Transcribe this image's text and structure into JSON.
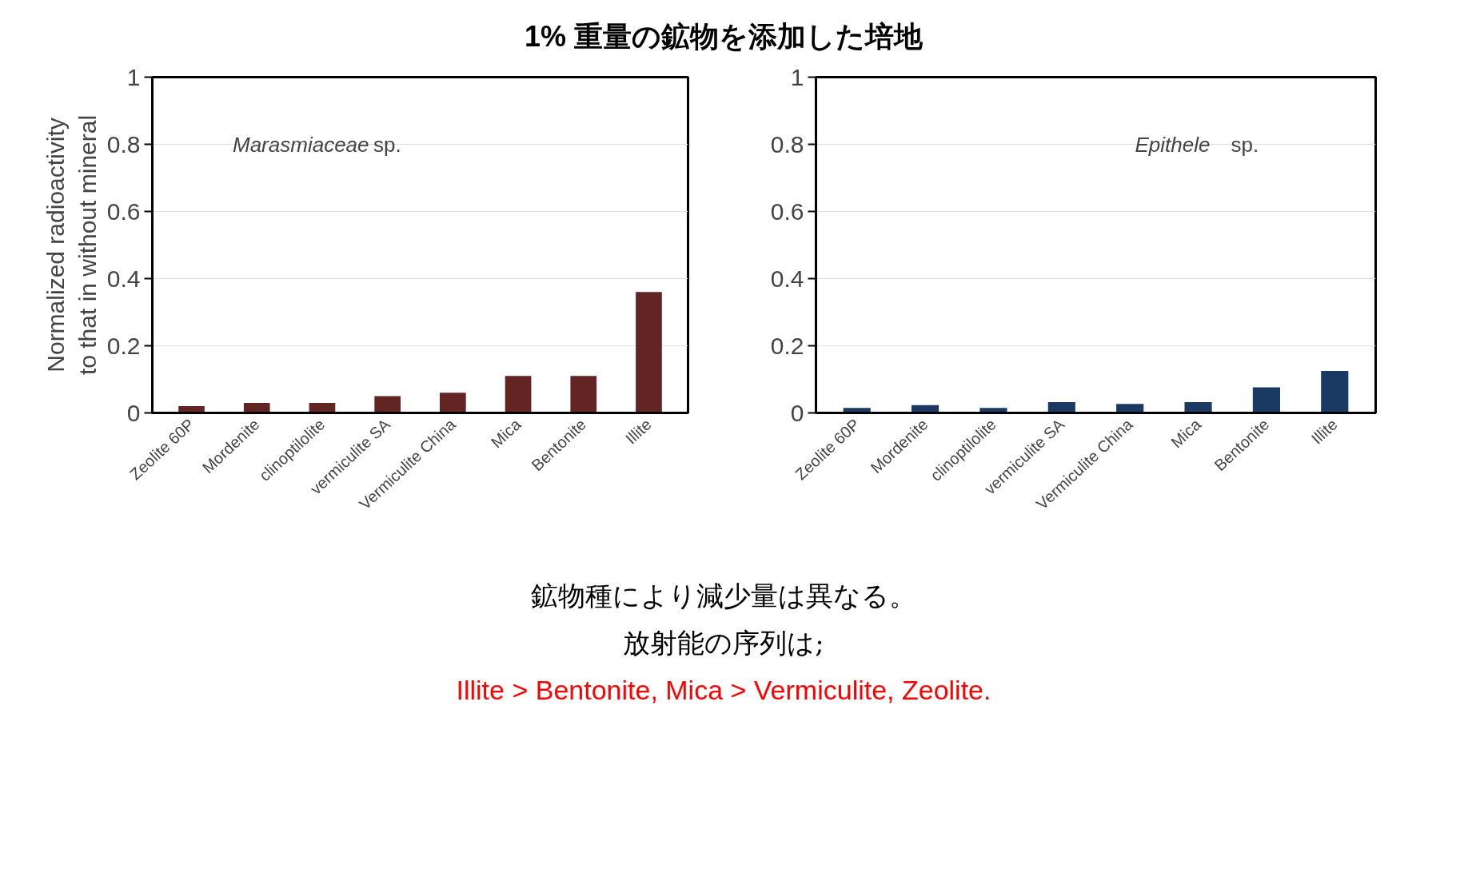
{
  "chart_data": [
    {
      "type": "bar",
      "title": "1% 重量の鉱物を添加した培地",
      "ylabel": "Normalized radioactivity\nto that in without mineral",
      "categories": [
        "Zeolite 60P",
        "Mordenite",
        "clinoptilolite",
        "vermiculite SA",
        "Vermiculite China",
        "Mica",
        "Bentonite",
        "Illite"
      ],
      "values": [
        0.02,
        0.03,
        0.03,
        0.05,
        0.06,
        0.11,
        0.11,
        0.36
      ],
      "color": "#632523",
      "ylim": [
        0,
        1
      ],
      "yticks": [
        0,
        0.2,
        0.4,
        0.6,
        0.8,
        1
      ],
      "grid": "y",
      "annotations": [
        "Marasmiaceae sp.",
        "鉱物種により減少量は異なる。",
        "放射能の序列は;",
        "Illite >  Bentonite, Mica > Vermiculite, Zeolite."
      ]
    },
    {
      "type": "bar",
      "categories": [
        "Zeolite 60P",
        "Mordenite",
        "clinoptilolite",
        "vermiculite SA",
        "Vermiculite China",
        "Mica",
        "Bentonite",
        "Illite"
      ],
      "values": [
        0.015,
        0.023,
        0.015,
        0.032,
        0.027,
        0.032,
        0.076,
        0.125
      ],
      "color": "#1b3a63",
      "ylim": [
        0,
        1
      ],
      "yticks": [
        0,
        0.2,
        0.4,
        0.6,
        0.8,
        1
      ],
      "grid": "y",
      "annotations": [
        "Epithele sp."
      ]
    }
  ]
}
